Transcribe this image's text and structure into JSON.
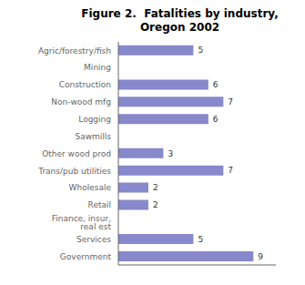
{
  "chart_data": {
    "type": "bar",
    "title": "Figure 2.  Fatalities by industry,\nOregon 2002",
    "categories": [
      "Agric/forestry/fish",
      "Mining",
      "Construction",
      "Non-wood mfg",
      "Logging",
      "Sawmills",
      "Other wood prod",
      "Trans/pub utilities",
      "Wholesale",
      "Retail",
      "Finance, insur, real est",
      "Services",
      "Government"
    ],
    "values": [
      5,
      0,
      6,
      7,
      6,
      0,
      3,
      7,
      2,
      2,
      0,
      5,
      9
    ],
    "color": "#8888cc",
    "orientation": "horizontal",
    "xlim": [
      0,
      10.5
    ],
    "data_labels": true,
    "tick_labels": "y",
    "grid": false
  }
}
